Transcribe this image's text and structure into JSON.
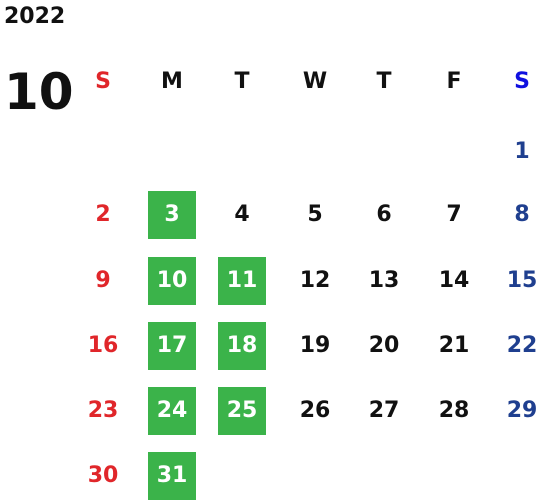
{
  "calendar": {
    "year": "2022",
    "month": "10",
    "weekdays": [
      "S",
      "M",
      "T",
      "W",
      "T",
      "F",
      "S"
    ],
    "weeks": [
      [
        null,
        null,
        null,
        null,
        null,
        null,
        1
      ],
      [
        2,
        3,
        4,
        5,
        6,
        7,
        8
      ],
      [
        9,
        10,
        11,
        12,
        13,
        14,
        15
      ],
      [
        16,
        17,
        18,
        19,
        20,
        21,
        22
      ],
      [
        23,
        24,
        25,
        26,
        27,
        28,
        29
      ],
      [
        30,
        31,
        null,
        null,
        null,
        null,
        null
      ]
    ],
    "highlighted_days": [
      3,
      10,
      11,
      17,
      18,
      24,
      25,
      31
    ],
    "highlight_color": "#3bb34a",
    "sunday_color": "#e0262a",
    "saturday_header_color": "#1010e0",
    "saturday_color": "#1f3f8f",
    "weekday_color": "#111111"
  }
}
